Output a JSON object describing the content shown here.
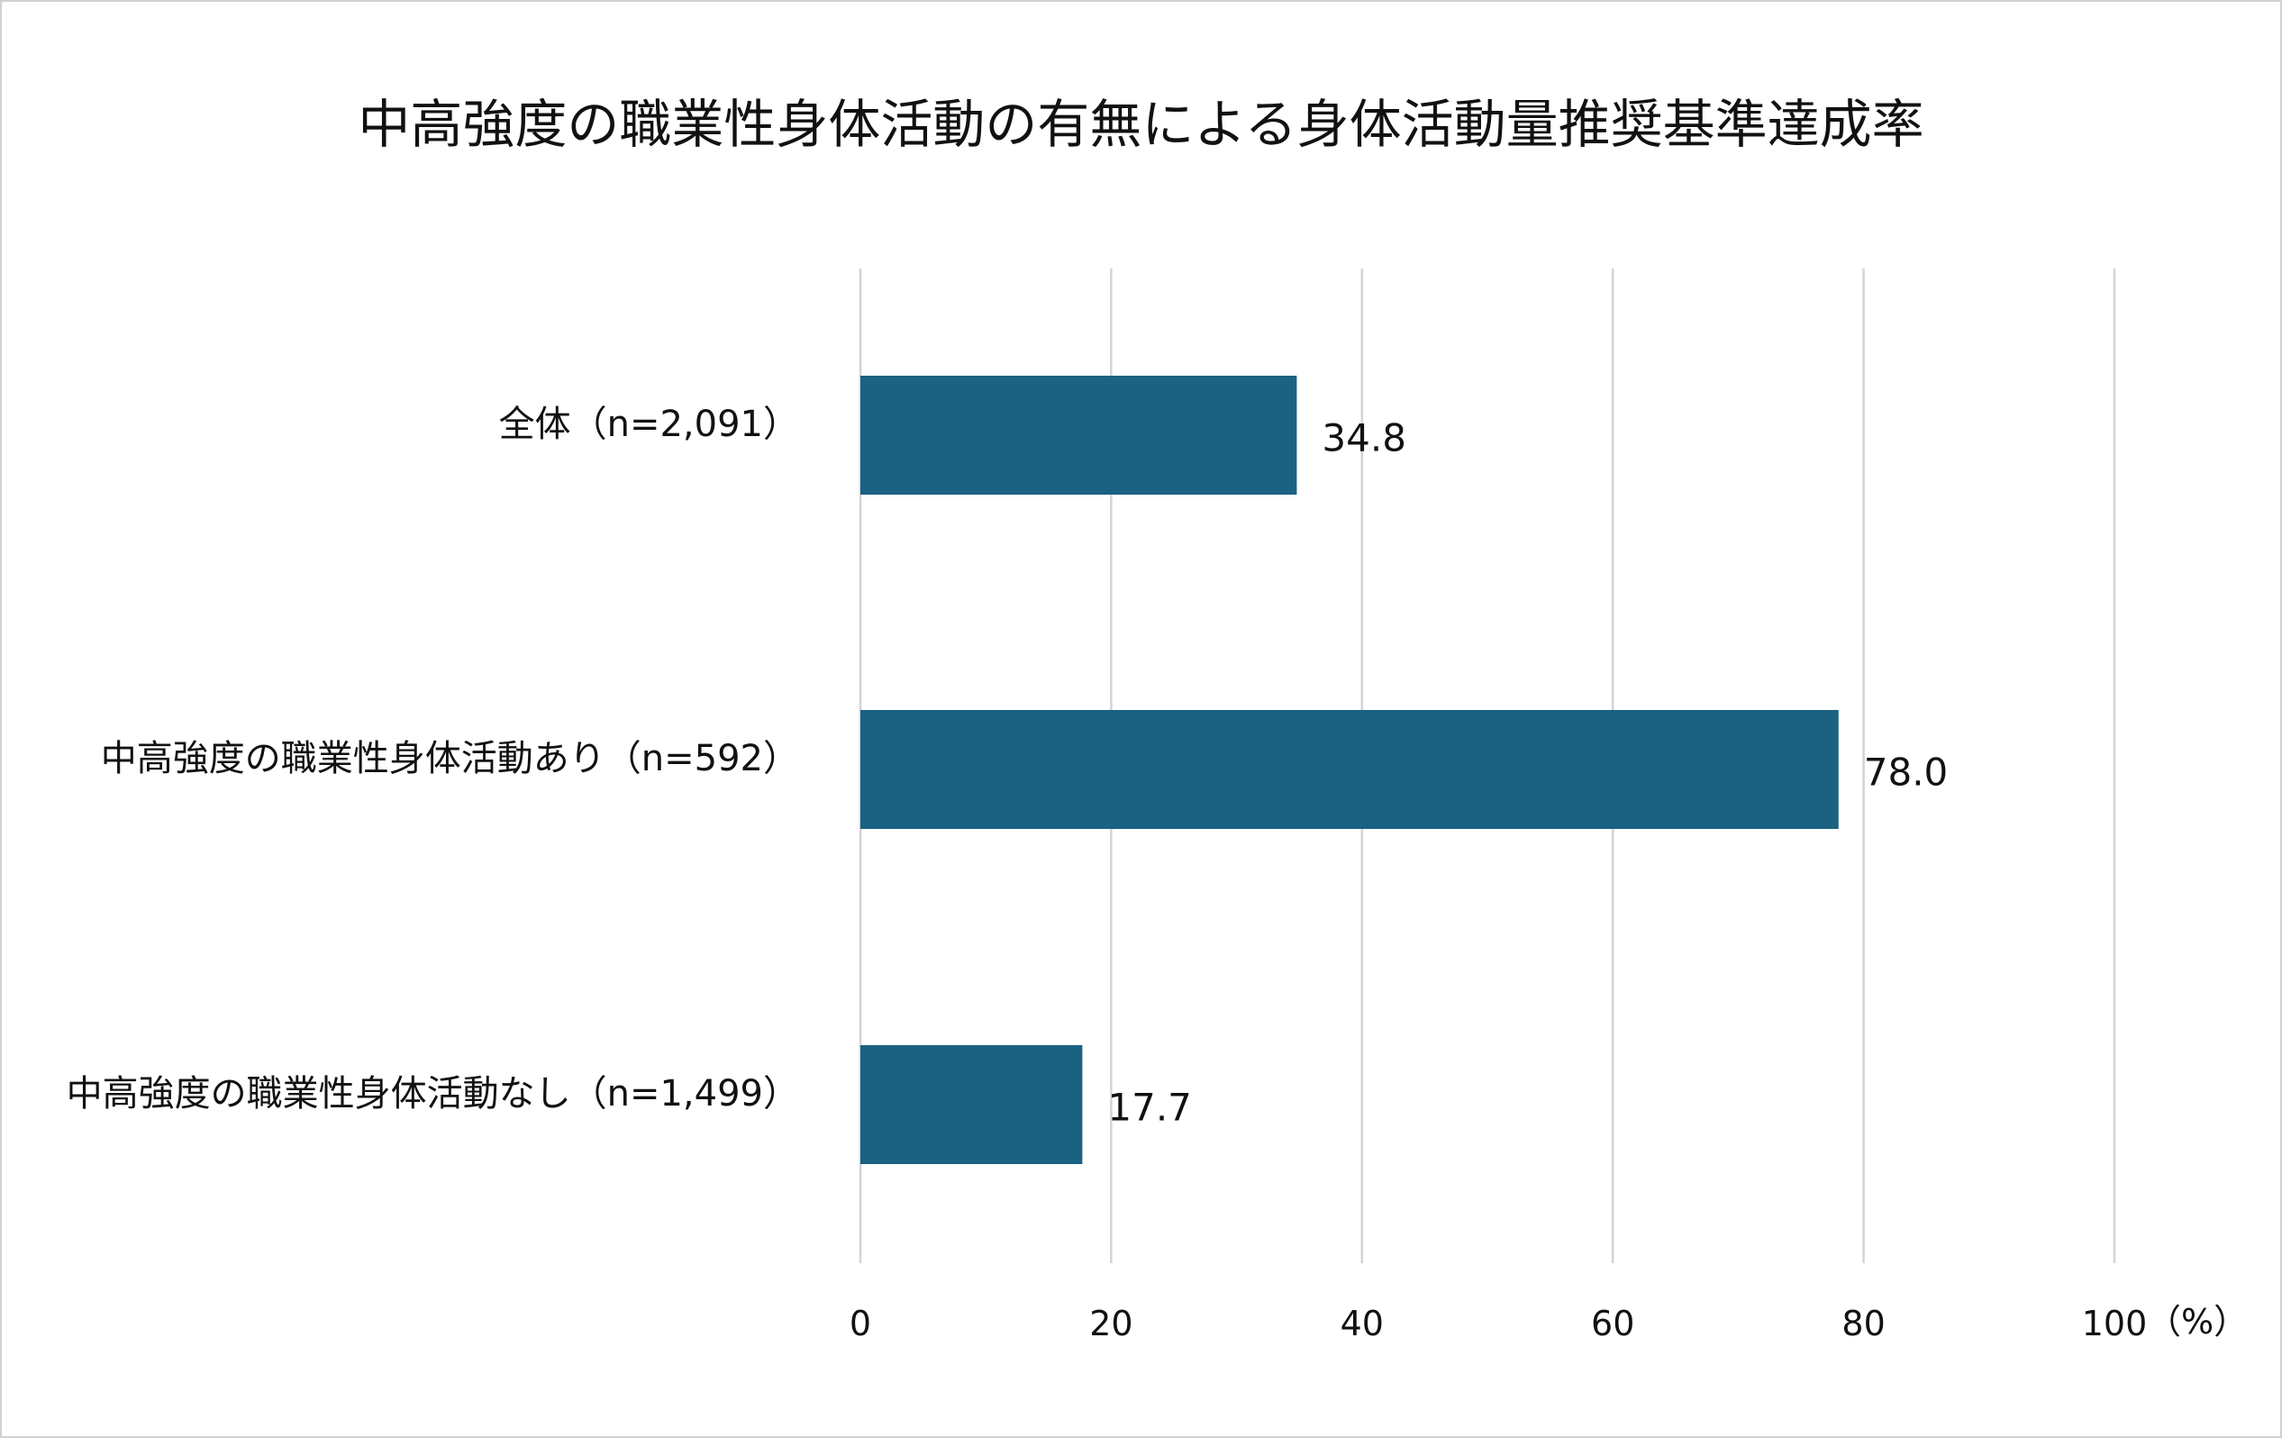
{
  "chart_data": {
    "type": "bar",
    "orientation": "horizontal",
    "title": "中高強度の職業性身体活動の有無による身体活動量推奨基準達成率",
    "categories": [
      "全体（n=2,091）",
      "中高強度の職業性身体活動あり（n=592）",
      "中高強度の職業性身体活動なし（n=1,499）"
    ],
    "values": [
      34.8,
      78.0,
      17.7
    ],
    "value_labels": [
      "34.8",
      "78.0",
      "17.7"
    ],
    "xlim": [
      0,
      100
    ],
    "x_ticks": [
      0,
      20,
      40,
      60,
      80,
      100
    ],
    "x_tick_labels": [
      "0",
      "20",
      "40",
      "60",
      "80",
      "100"
    ],
    "x_unit": "（%）",
    "grid": true,
    "legend": "none",
    "colors": {
      "bar": "#1a6182",
      "grid": "#d4d4d4",
      "border": "#d0d0d0"
    }
  }
}
